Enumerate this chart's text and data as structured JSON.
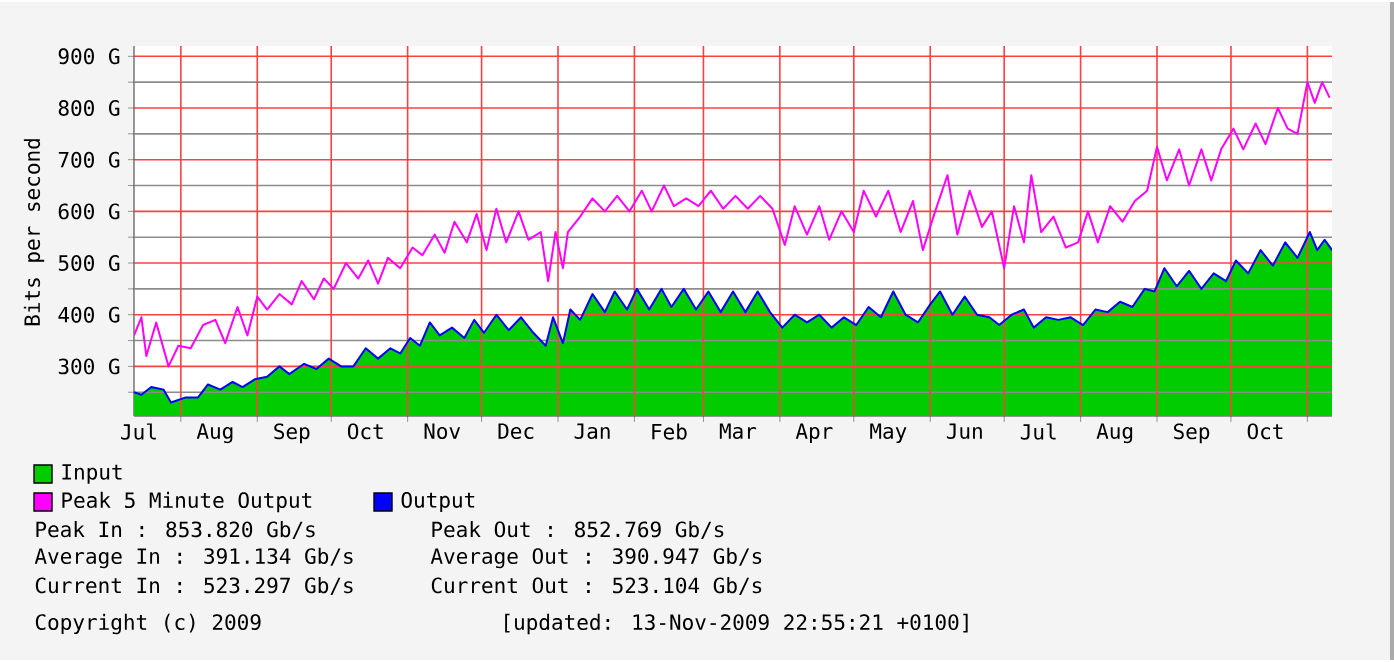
{
  "chart_data": {
    "type": "area",
    "ylabel": "Bits per second",
    "grid": true,
    "legend": "bottom",
    "xlim": [
      "2008-07-13",
      "2009-11-11"
    ],
    "ylim": [
      204,
      920
    ],
    "xticks": [
      {
        "value": "2008-07-15",
        "label": "Jul"
      },
      {
        "value": "2008-08-15",
        "label": "Aug"
      },
      {
        "value": "2008-09-15",
        "label": "Sep"
      },
      {
        "value": "2008-10-15",
        "label": "Oct"
      },
      {
        "value": "2008-11-15",
        "label": "Nov"
      },
      {
        "value": "2008-12-15",
        "label": "Dec"
      },
      {
        "value": "2009-01-15",
        "label": "Jan"
      },
      {
        "value": "2009-02-15",
        "label": "Feb"
      },
      {
        "value": "2009-03-15",
        "label": "Mar"
      },
      {
        "value": "2009-04-15",
        "label": "Apr"
      },
      {
        "value": "2009-05-15",
        "label": "May"
      },
      {
        "value": "2009-06-15",
        "label": "Jun"
      },
      {
        "value": "2009-07-15",
        "label": "Jul"
      },
      {
        "value": "2009-08-15",
        "label": "Aug"
      },
      {
        "value": "2009-09-15",
        "label": "Sep"
      },
      {
        "value": "2009-10-15",
        "label": "Oct"
      },
      {
        "value": "2008-08-01",
        "label": null
      },
      {
        "value": "2008-09-01",
        "label": null
      },
      {
        "value": "2008-10-01",
        "label": null
      },
      {
        "value": "2008-11-01",
        "label": null
      },
      {
        "value": "2008-12-01",
        "label": null
      },
      {
        "value": "2009-01-01",
        "label": null
      },
      {
        "value": "2009-02-01",
        "label": null
      },
      {
        "value": "2009-03-01",
        "label": null
      },
      {
        "value": "2009-04-01",
        "label": null
      },
      {
        "value": "2009-05-01",
        "label": null
      },
      {
        "value": "2009-06-01",
        "label": null
      },
      {
        "value": "2009-07-01",
        "label": null
      },
      {
        "value": "2009-08-01",
        "label": null
      },
      {
        "value": "2009-09-01",
        "label": null
      },
      {
        "value": "2009-10-01",
        "label": null
      },
      {
        "value": "2009-11-01",
        "label": null
      }
    ],
    "yticks": [
      {
        "value": 300,
        "label": "300 G"
      },
      {
        "value": 400,
        "label": "400 G"
      },
      {
        "value": 500,
        "label": "500 G"
      },
      {
        "value": 600,
        "label": "600 G"
      },
      {
        "value": 700,
        "label": "700 G"
      },
      {
        "value": 800,
        "label": "800 G"
      },
      {
        "value": 900,
        "label": "900 G"
      },
      {
        "value": 250,
        "label": null
      },
      {
        "value": 350,
        "label": null
      },
      {
        "value": 450,
        "label": null
      },
      {
        "value": 550,
        "label": null
      },
      {
        "value": 650,
        "label": null
      },
      {
        "value": 750,
        "label": null
      },
      {
        "value": 850,
        "label": null
      }
    ],
    "series": [
      {
        "name": "Input",
        "color": "#00cc00",
        "x": [
          "2008-07-13",
          "2008-07-16",
          "2008-07-20",
          "2008-07-25",
          "2008-07-28",
          "2008-08-03",
          "2008-08-08",
          "2008-08-12",
          "2008-08-17",
          "2008-08-22",
          "2008-08-26",
          "2008-08-31",
          "2008-09-05",
          "2008-09-10",
          "2008-09-14",
          "2008-09-20",
          "2008-09-25",
          "2008-09-30",
          "2008-10-05",
          "2008-10-10",
          "2008-10-15",
          "2008-10-20",
          "2008-10-25",
          "2008-10-29",
          "2008-11-02",
          "2008-11-06",
          "2008-11-10",
          "2008-11-14",
          "2008-11-19",
          "2008-11-24",
          "2008-11-28",
          "2008-12-02",
          "2008-12-07",
          "2008-12-12",
          "2008-12-17",
          "2008-12-22",
          "2008-12-27",
          "2008-12-30",
          "2009-01-03",
          "2009-01-06",
          "2009-01-10",
          "2009-01-15",
          "2009-01-20",
          "2009-01-24",
          "2009-01-29",
          "2009-02-02",
          "2009-02-07",
          "2009-02-12",
          "2009-02-16",
          "2009-02-21",
          "2009-02-26",
          "2009-03-03",
          "2009-03-08",
          "2009-03-13",
          "2009-03-18",
          "2009-03-23",
          "2009-03-28",
          "2009-04-02",
          "2009-04-07",
          "2009-04-12",
          "2009-04-17",
          "2009-04-22",
          "2009-04-27",
          "2009-05-02",
          "2009-05-07",
          "2009-05-12",
          "2009-05-17",
          "2009-05-22",
          "2009-05-27",
          "2009-06-01",
          "2009-06-05",
          "2009-06-10",
          "2009-06-15",
          "2009-06-20",
          "2009-06-25",
          "2009-06-29",
          "2009-07-04",
          "2009-07-09",
          "2009-07-13",
          "2009-07-18",
          "2009-07-23",
          "2009-07-28",
          "2009-08-02",
          "2009-08-07",
          "2009-08-12",
          "2009-08-17",
          "2009-08-22",
          "2009-08-27",
          "2009-08-31",
          "2009-09-04",
          "2009-09-09",
          "2009-09-14",
          "2009-09-19",
          "2009-09-24",
          "2009-09-29",
          "2009-10-03",
          "2009-10-08",
          "2009-10-13",
          "2009-10-18",
          "2009-10-23",
          "2009-10-28",
          "2009-11-02",
          "2009-11-05",
          "2009-11-08",
          "2009-11-11"
        ],
        "values": [
          250,
          245,
          260,
          255,
          230,
          240,
          240,
          265,
          255,
          270,
          260,
          275,
          280,
          300,
          285,
          305,
          295,
          315,
          300,
          300,
          335,
          315,
          335,
          325,
          355,
          340,
          385,
          360,
          375,
          355,
          390,
          365,
          400,
          370,
          395,
          365,
          340,
          395,
          345,
          410,
          390,
          440,
          405,
          445,
          410,
          450,
          410,
          450,
          415,
          450,
          410,
          445,
          405,
          445,
          405,
          445,
          405,
          375,
          400,
          385,
          400,
          375,
          395,
          380,
          415,
          395,
          445,
          400,
          385,
          420,
          445,
          400,
          435,
          400,
          395,
          380,
          400,
          410,
          375,
          395,
          390,
          395,
          380,
          410,
          405,
          425,
          415,
          450,
          445,
          490,
          455,
          485,
          450,
          480,
          465,
          505,
          480,
          525,
          495,
          540,
          510,
          560,
          525,
          545,
          525
        ]
      },
      {
        "name": "Peak 5 Minute Output",
        "type": "line",
        "color": "#ff00ff",
        "x": [
          "2008-07-13",
          "2008-07-16",
          "2008-07-18",
          "2008-07-22",
          "2008-07-27",
          "2008-07-31",
          "2008-08-05",
          "2008-08-10",
          "2008-08-15",
          "2008-08-19",
          "2008-08-24",
          "2008-08-28",
          "2008-09-01",
          "2008-09-05",
          "2008-09-10",
          "2008-09-15",
          "2008-09-19",
          "2008-09-24",
          "2008-09-28",
          "2008-10-02",
          "2008-10-07",
          "2008-10-12",
          "2008-10-16",
          "2008-10-20",
          "2008-10-24",
          "2008-10-29",
          "2008-11-03",
          "2008-11-07",
          "2008-11-12",
          "2008-11-16",
          "2008-11-20",
          "2008-11-25",
          "2008-11-29",
          "2008-12-03",
          "2008-12-07",
          "2008-12-11",
          "2008-12-16",
          "2008-12-20",
          "2008-12-25",
          "2008-12-28",
          "2008-12-31",
          "2009-01-03",
          "2009-01-05",
          "2009-01-10",
          "2009-01-15",
          "2009-01-20",
          "2009-01-25",
          "2009-01-30",
          "2009-02-04",
          "2009-02-08",
          "2009-02-13",
          "2009-02-17",
          "2009-02-22",
          "2009-02-27",
          "2009-03-04",
          "2009-03-09",
          "2009-03-14",
          "2009-03-19",
          "2009-03-24",
          "2009-03-29",
          "2009-04-03",
          "2009-04-07",
          "2009-04-12",
          "2009-04-17",
          "2009-04-21",
          "2009-04-26",
          "2009-05-01",
          "2009-05-05",
          "2009-05-10",
          "2009-05-15",
          "2009-05-20",
          "2009-05-25",
          "2009-05-29",
          "2009-06-03",
          "2009-06-08",
          "2009-06-12",
          "2009-06-17",
          "2009-06-22",
          "2009-06-26",
          "2009-07-01",
          "2009-07-05",
          "2009-07-09",
          "2009-07-12",
          "2009-07-16",
          "2009-07-21",
          "2009-07-26",
          "2009-07-31",
          "2009-08-04",
          "2009-08-08",
          "2009-08-13",
          "2009-08-18",
          "2009-08-23",
          "2009-08-28",
          "2009-09-01",
          "2009-09-05",
          "2009-09-10",
          "2009-09-14",
          "2009-09-19",
          "2009-09-23",
          "2009-09-27",
          "2009-10-02",
          "2009-10-06",
          "2009-10-11",
          "2009-10-15",
          "2009-10-20",
          "2009-10-24",
          "2009-10-28",
          "2009-11-01",
          "2009-11-04",
          "2009-11-07",
          "2009-11-10"
        ],
        "values": [
          360,
          395,
          320,
          385,
          300,
          340,
          335,
          380,
          390,
          345,
          415,
          360,
          435,
          410,
          440,
          420,
          465,
          430,
          470,
          450,
          500,
          470,
          505,
          460,
          510,
          490,
          530,
          515,
          555,
          520,
          580,
          540,
          595,
          525,
          605,
          540,
          600,
          545,
          560,
          465,
          560,
          490,
          560,
          590,
          625,
          600,
          630,
          600,
          640,
          600,
          650,
          610,
          625,
          610,
          640,
          605,
          630,
          605,
          630,
          605,
          535,
          610,
          555,
          610,
          545,
          600,
          560,
          640,
          590,
          640,
          560,
          620,
          525,
          600,
          670,
          555,
          640,
          570,
          600,
          490,
          610,
          540,
          670,
          560,
          590,
          530,
          540,
          600,
          540,
          610,
          580,
          620,
          640,
          725,
          660,
          720,
          650,
          720,
          660,
          720,
          760,
          720,
          770,
          730,
          800,
          760,
          750,
          850,
          810,
          850,
          820
        ]
      },
      {
        "name": "Output",
        "type": "line",
        "color": "#0000ff",
        "x": [
          "2008-07-13",
          "2008-07-16",
          "2008-07-20",
          "2008-07-25",
          "2008-07-28",
          "2008-08-03",
          "2008-08-08",
          "2008-08-12",
          "2008-08-17",
          "2008-08-22",
          "2008-08-26",
          "2008-08-31",
          "2008-09-05",
          "2008-09-10",
          "2008-09-14",
          "2008-09-20",
          "2008-09-25",
          "2008-09-30",
          "2008-10-05",
          "2008-10-10",
          "2008-10-15",
          "2008-10-20",
          "2008-10-25",
          "2008-10-29",
          "2008-11-02",
          "2008-11-06",
          "2008-11-10",
          "2008-11-14",
          "2008-11-19",
          "2008-11-24",
          "2008-11-28",
          "2008-12-02",
          "2008-12-07",
          "2008-12-12",
          "2008-12-17",
          "2008-12-22",
          "2008-12-27",
          "2008-12-30",
          "2009-01-03",
          "2009-01-06",
          "2009-01-10",
          "2009-01-15",
          "2009-01-20",
          "2009-01-24",
          "2009-01-29",
          "2009-02-02",
          "2009-02-07",
          "2009-02-12",
          "2009-02-16",
          "2009-02-21",
          "2009-02-26",
          "2009-03-03",
          "2009-03-08",
          "2009-03-13",
          "2009-03-18",
          "2009-03-23",
          "2009-03-28",
          "2009-04-02",
          "2009-04-07",
          "2009-04-12",
          "2009-04-17",
          "2009-04-22",
          "2009-04-27",
          "2009-05-02",
          "2009-05-07",
          "2009-05-12",
          "2009-05-17",
          "2009-05-22",
          "2009-05-27",
          "2009-06-01",
          "2009-06-05",
          "2009-06-10",
          "2009-06-15",
          "2009-06-20",
          "2009-06-25",
          "2009-06-29",
          "2009-07-04",
          "2009-07-09",
          "2009-07-13",
          "2009-07-18",
          "2009-07-23",
          "2009-07-28",
          "2009-08-02",
          "2009-08-07",
          "2009-08-12",
          "2009-08-17",
          "2009-08-22",
          "2009-08-27",
          "2009-08-31",
          "2009-09-04",
          "2009-09-09",
          "2009-09-14",
          "2009-09-19",
          "2009-09-24",
          "2009-09-29",
          "2009-10-03",
          "2009-10-08",
          "2009-10-13",
          "2009-10-18",
          "2009-10-23",
          "2009-10-28",
          "2009-11-02",
          "2009-11-05",
          "2009-11-08",
          "2009-11-11"
        ],
        "values": [
          250,
          245,
          260,
          255,
          230,
          240,
          240,
          265,
          255,
          270,
          260,
          275,
          280,
          300,
          285,
          305,
          295,
          315,
          300,
          300,
          335,
          315,
          335,
          325,
          355,
          340,
          385,
          360,
          375,
          355,
          390,
          365,
          400,
          370,
          395,
          365,
          340,
          395,
          345,
          410,
          390,
          440,
          405,
          445,
          410,
          450,
          410,
          450,
          415,
          450,
          410,
          445,
          405,
          445,
          405,
          445,
          405,
          375,
          400,
          385,
          400,
          375,
          395,
          380,
          415,
          395,
          445,
          400,
          385,
          420,
          445,
          400,
          435,
          400,
          395,
          380,
          400,
          410,
          375,
          395,
          390,
          395,
          380,
          410,
          405,
          425,
          415,
          450,
          445,
          490,
          455,
          485,
          450,
          480,
          465,
          505,
          480,
          525,
          495,
          540,
          510,
          560,
          525,
          545,
          525
        ]
      }
    ],
    "annotations": [
      "Peak In : 853.820 Gb/s",
      "Peak Out : 852.769 Gb/s",
      "Average In : 391.134 Gb/s",
      "Average Out : 390.947 Gb/s",
      "Current In : 523.297 Gb/s",
      "Current Out : 523.104 Gb/s",
      "Copyright (c) 2009",
      "[updated: 13-Nov-2009 22:55:21 +0100]"
    ]
  }
}
